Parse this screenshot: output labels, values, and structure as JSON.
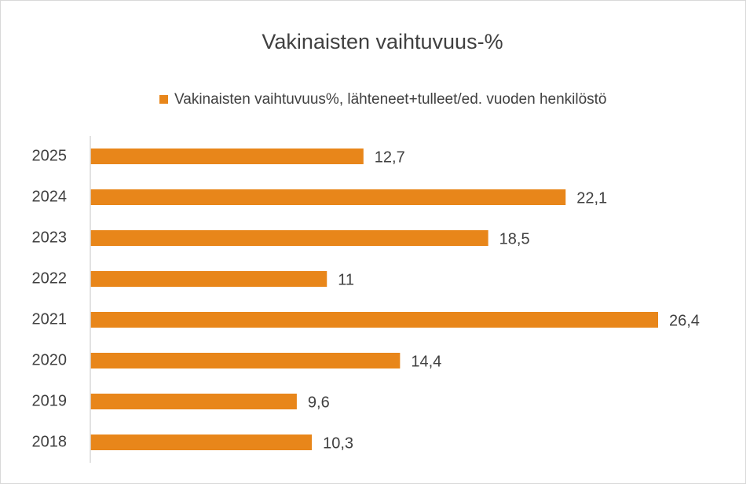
{
  "chart_data": {
    "type": "bar",
    "orientation": "horizontal",
    "title": "Vakinaisten vaihtuvuus-%",
    "categories": [
      "2025",
      "2024",
      "2023",
      "2022",
      "2021",
      "2020",
      "2019",
      "2018"
    ],
    "series": [
      {
        "name": "Vakinaisten vaihtuvuus%, lähteneet+tulleet/ed. vuoden henkilöstö",
        "color": "#e8861a",
        "values": [
          12.7,
          22.1,
          18.5,
          11,
          26.4,
          14.4,
          9.6,
          10.3
        ],
        "value_labels": [
          "12,7",
          "22,1",
          "18,5",
          "11",
          "26,4",
          "14,4",
          "9,6",
          "10,3"
        ]
      }
    ],
    "legend": "top"
  }
}
